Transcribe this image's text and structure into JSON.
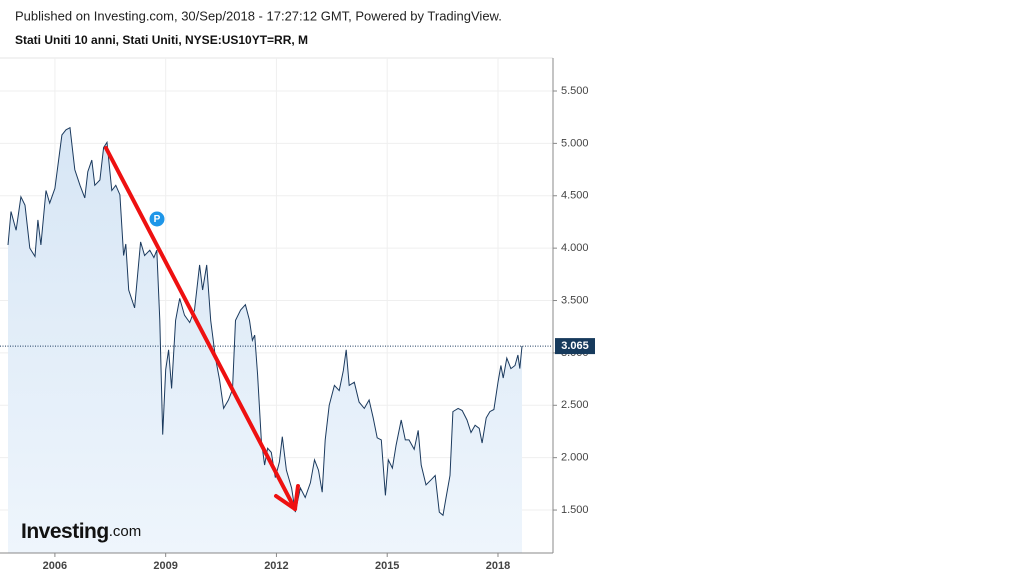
{
  "header": "Published on Investing.com, 30/Sep/2018 - 17:27:12 GMT, Powered by TradingView.",
  "chart_data": {
    "type": "line",
    "title": "Stati Uniti 10 anni, Stati Uniti, NYSE:US10YT=RR, M",
    "marker_label": "P",
    "logo": {
      "name": "Investing",
      "suffix": ".com"
    },
    "color": "#1b3a5e",
    "x": [
      2004.73,
      2004.81,
      2004.95,
      2005.08,
      2005.19,
      2005.32,
      2005.46,
      2005.54,
      2005.62,
      2005.76,
      2005.86,
      2006.0,
      2006.19,
      2006.3,
      2006.41,
      2006.54,
      2006.68,
      2006.81,
      2006.89,
      2007.0,
      2007.08,
      2007.22,
      2007.32,
      2007.41,
      2007.54,
      2007.65,
      2007.76,
      2007.86,
      2007.92,
      2008.0,
      2008.16,
      2008.32,
      2008.43,
      2008.57,
      2008.68,
      2008.76,
      2008.84,
      2008.92,
      2009.0,
      2009.08,
      2009.16,
      2009.27,
      2009.38,
      2009.51,
      2009.65,
      2009.78,
      2009.92,
      2010.0,
      2010.11,
      2010.22,
      2010.35,
      2010.46,
      2010.57,
      2010.7,
      2010.81,
      2010.89,
      2011.03,
      2011.16,
      2011.27,
      2011.35,
      2011.41,
      2011.49,
      2011.59,
      2011.68,
      2011.76,
      2011.86,
      2011.97,
      2012.08,
      2012.16,
      2012.27,
      2012.41,
      2012.51,
      2012.65,
      2012.78,
      2012.92,
      2013.03,
      2013.14,
      2013.24,
      2013.32,
      2013.43,
      2013.57,
      2013.7,
      2013.81,
      2013.89,
      2013.97,
      2014.11,
      2014.24,
      2014.38,
      2014.51,
      2014.62,
      2014.73,
      2014.84,
      2014.95,
      2015.03,
      2015.14,
      2015.24,
      2015.38,
      2015.49,
      2015.59,
      2015.73,
      2015.84,
      2015.92,
      2016.05,
      2016.19,
      2016.3,
      2016.41,
      2016.51,
      2016.59,
      2016.7,
      2016.78,
      2016.92,
      2017.03,
      2017.16,
      2017.27,
      2017.38,
      2017.49,
      2017.57,
      2017.68,
      2017.78,
      2017.89,
      2018.0,
      2018.08,
      2018.14,
      2018.24,
      2018.35,
      2018.46,
      2018.54,
      2018.59,
      2018.65
    ],
    "values": [
      4.03,
      4.35,
      4.17,
      4.49,
      4.41,
      4.0,
      3.92,
      4.27,
      4.03,
      4.55,
      4.43,
      4.57,
      5.08,
      5.13,
      5.15,
      4.75,
      4.6,
      4.48,
      4.73,
      4.84,
      4.6,
      4.65,
      4.96,
      5.01,
      4.55,
      4.6,
      4.51,
      3.93,
      4.04,
      3.6,
      3.43,
      4.06,
      3.93,
      3.98,
      3.91,
      3.98,
      3.31,
      2.22,
      2.84,
      3.03,
      2.66,
      3.31,
      3.52,
      3.36,
      3.29,
      3.41,
      3.84,
      3.6,
      3.84,
      3.31,
      2.95,
      2.74,
      2.47,
      2.55,
      2.65,
      3.31,
      3.41,
      3.46,
      3.31,
      3.12,
      3.17,
      2.79,
      2.17,
      1.93,
      2.09,
      2.05,
      1.81,
      1.96,
      2.2,
      1.88,
      1.71,
      1.48,
      1.71,
      1.62,
      1.76,
      1.98,
      1.88,
      1.67,
      2.17,
      2.5,
      2.69,
      2.64,
      2.83,
      3.03,
      2.69,
      2.72,
      2.53,
      2.47,
      2.55,
      2.38,
      2.19,
      2.17,
      1.64,
      1.98,
      1.9,
      2.12,
      2.36,
      2.17,
      2.17,
      2.08,
      2.26,
      1.93,
      1.74,
      1.79,
      1.83,
      1.48,
      1.45,
      1.61,
      1.83,
      2.44,
      2.47,
      2.45,
      2.36,
      2.24,
      2.31,
      2.28,
      2.14,
      2.38,
      2.44,
      2.46,
      2.72,
      2.88,
      2.76,
      2.95,
      2.85,
      2.88,
      2.98,
      2.85,
      3.065
    ],
    "xlim": [
      2004.73,
      2019.49
    ],
    "xticks": [
      2006,
      2009,
      2012,
      2015,
      2018
    ],
    "ylim": [
      1.09,
      5.815
    ],
    "yticks": [
      {
        "value": 1.5,
        "label": "1.500"
      },
      {
        "value": 2,
        "label": "2.000"
      },
      {
        "value": 2.5,
        "label": "2.500"
      },
      {
        "value": 3,
        "label": "3.000"
      },
      {
        "value": 3.5,
        "label": "3.500"
      },
      {
        "value": 4,
        "label": "4.000"
      },
      {
        "value": 4.5,
        "label": "4.500"
      },
      {
        "value": 5,
        "label": "5.000"
      },
      {
        "value": 5.5,
        "label": "5.500"
      }
    ],
    "grid": true
  }
}
